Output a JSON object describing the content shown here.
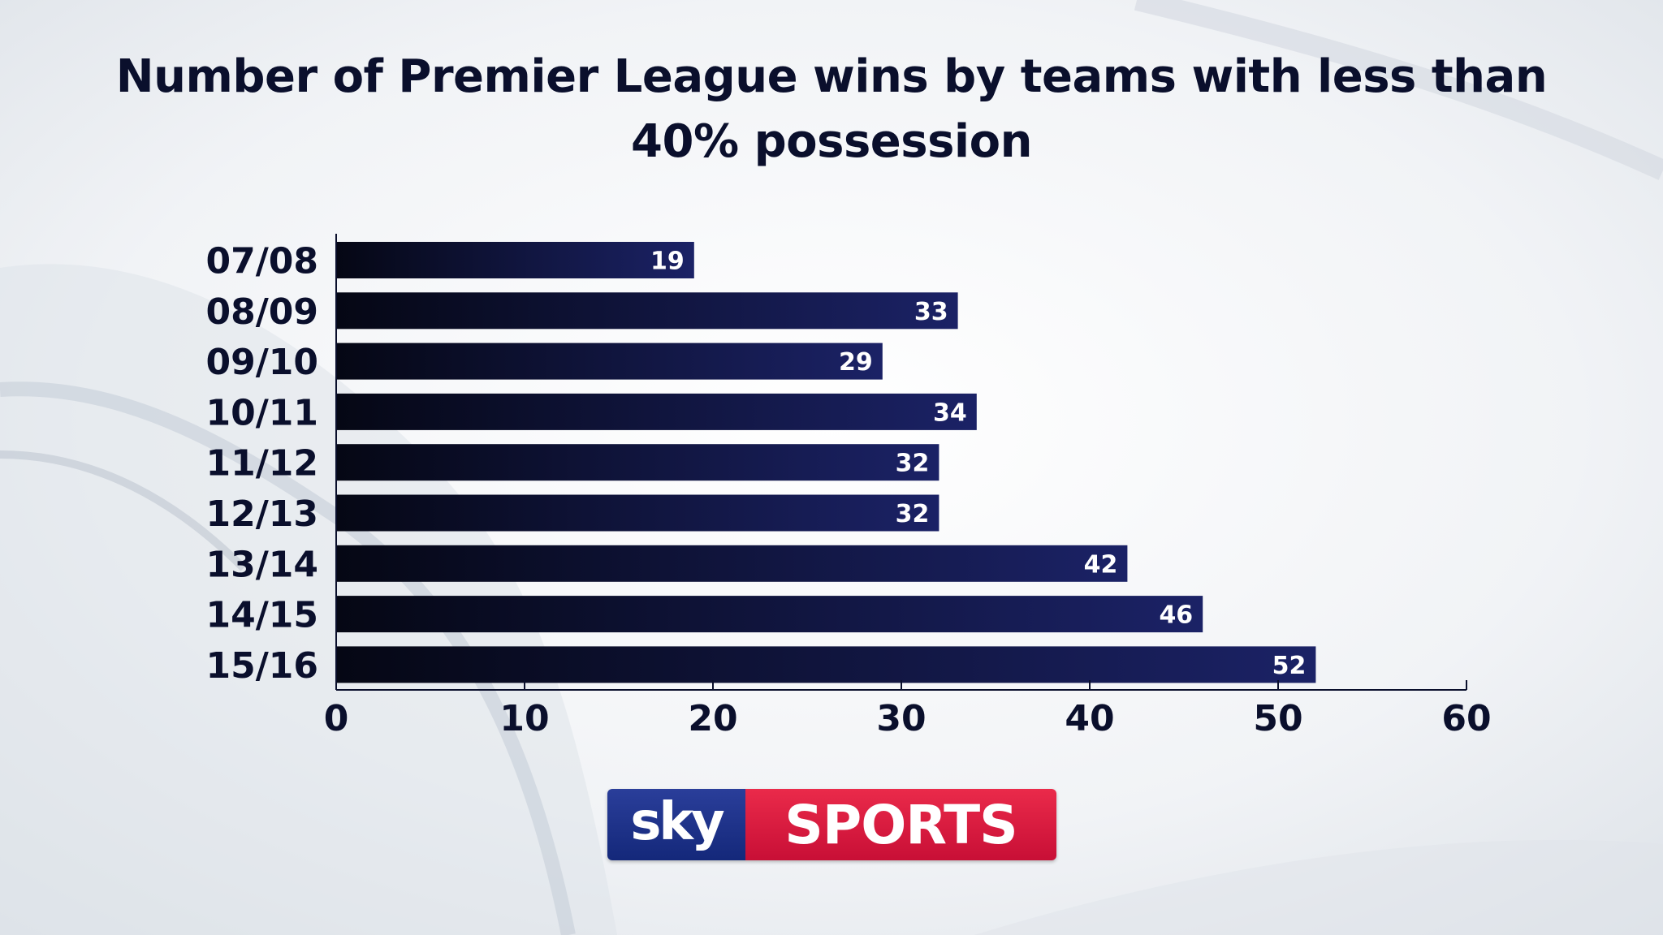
{
  "title_lines": [
    "Number of Premier League wins by teams with less than",
    "40% possession"
  ],
  "logo": {
    "sky": "sky",
    "sports": "SPORTS",
    "sky_color": "#1f3590",
    "sports_color": "#dc1f44"
  },
  "colors": {
    "bar_start": "#050714",
    "bar_end": "#1b2266",
    "text": "#0a0f2c",
    "background": "#eef0f3"
  },
  "chart_data": {
    "type": "bar",
    "orientation": "horizontal",
    "title": "Number of Premier League wins by teams with less than 40% possession",
    "categories": [
      "07/08",
      "08/09",
      "09/10",
      "10/11",
      "11/12",
      "12/13",
      "13/14",
      "14/15",
      "15/16"
    ],
    "values": [
      19,
      33,
      29,
      34,
      32,
      32,
      42,
      46,
      52
    ],
    "xlim": [
      0,
      60
    ],
    "xticks": [
      0,
      10,
      20,
      30,
      40,
      50,
      60
    ],
    "data_labels": true,
    "grid": false,
    "legend": "none"
  }
}
